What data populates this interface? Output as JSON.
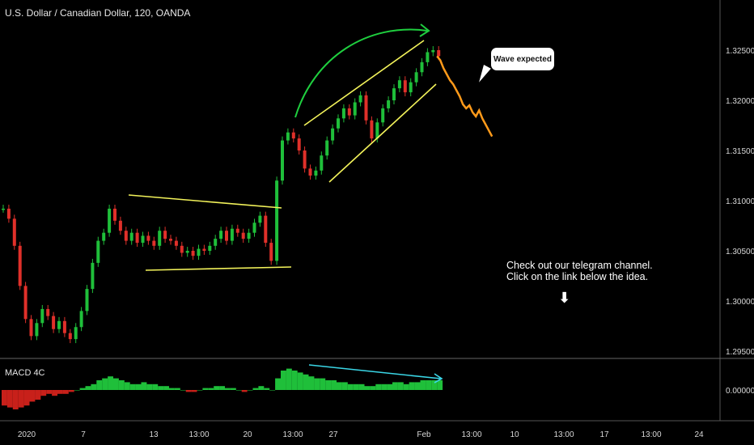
{
  "window": {
    "title": "U.S. Dollar / Canadian Dollar, 120, OANDA"
  },
  "indicator": {
    "label": "MACD 4C"
  },
  "annotations": {
    "bubble_text": "Wave expected",
    "note_line1": "Check out our telegram channel.",
    "note_line2": "Click on the link below the idea.",
    "arrow_icon": "down-arrow-icon"
  },
  "colors": {
    "background": "#000000",
    "up_candle": "#1fbf3a",
    "down_candle": "#e0302a",
    "projection": "#ff9a1a",
    "channel_lines": "#f2f25a",
    "curved_arrow": "#1fcf3f",
    "macd_divergence": "#3ad6e6",
    "macd_positive": "#1fbf3a",
    "macd_negative": "#c8201a"
  },
  "chart_data": {
    "type": "line",
    "title": "U.S. Dollar / Canadian Dollar, 120, OANDA",
    "xlabel": "",
    "ylabel": "",
    "x_tick_labels": [
      "2020",
      "7",
      "13",
      "13:00",
      "20",
      "13:00",
      "27",
      "Feb",
      "13:00",
      "10",
      "13:00",
      "17",
      "13:00",
      "24"
    ],
    "y_tick_labels": [
      "1.32500",
      "1.32000",
      "1.31500",
      "1.31000",
      "1.30500",
      "1.30000",
      "1.29500"
    ],
    "ylim": [
      1.2945,
      1.3275
    ],
    "grid": false,
    "series": [
      {
        "role": "price",
        "values": [
          1.3092,
          1.3082,
          1.3055,
          1.3015,
          1.2982,
          1.2965,
          1.2978,
          1.2992,
          1.2985,
          1.2972,
          1.298,
          1.2968,
          1.2962,
          1.2974,
          1.299,
          1.3012,
          1.3038,
          1.306,
          1.3068,
          1.3092,
          1.308,
          1.307,
          1.306,
          1.3068,
          1.3058,
          1.3065,
          1.306,
          1.3055,
          1.307,
          1.3062,
          1.306,
          1.3055,
          1.3048,
          1.305,
          1.3045,
          1.3052,
          1.305,
          1.3055,
          1.3062,
          1.307,
          1.306,
          1.3072,
          1.3068,
          1.3062,
          1.3068,
          1.3078,
          1.3085,
          1.3058,
          1.304,
          1.312,
          1.316,
          1.3168,
          1.3162,
          1.315,
          1.3132,
          1.3125,
          1.313,
          1.3145,
          1.316,
          1.3172,
          1.3182,
          1.3192,
          1.3185,
          1.3198,
          1.3205,
          1.318,
          1.3162,
          1.3178,
          1.3192,
          1.32,
          1.3212,
          1.322,
          1.3208,
          1.3218,
          1.3228,
          1.3238,
          1.3248,
          1.325,
          1.3244
        ]
      },
      {
        "role": "projection",
        "values": [
          1.3244,
          1.324,
          1.3232,
          1.3226,
          1.322,
          1.3216,
          1.321,
          1.3204,
          1.3196,
          1.3192,
          1.3195,
          1.3188,
          1.3184,
          1.319,
          1.3182,
          1.3176,
          1.317,
          1.3164
        ]
      }
    ],
    "macd": {
      "values": [
        -8,
        -9,
        -10,
        -9,
        -8,
        -6,
        -5,
        -3,
        -2,
        -3,
        -2,
        -2,
        -1,
        0,
        1,
        2,
        3,
        5,
        6,
        7,
        6,
        5,
        4,
        3,
        3,
        4,
        3,
        3,
        2,
        2,
        1,
        1,
        0,
        -1,
        -1,
        0,
        1,
        1,
        2,
        2,
        1,
        1,
        0,
        -1,
        0,
        1,
        2,
        1,
        0,
        6,
        10,
        11,
        10,
        9,
        8,
        7,
        6,
        6,
        5,
        5,
        4,
        4,
        3,
        3,
        3,
        2,
        2,
        3,
        3,
        3,
        4,
        4,
        3,
        4,
        4,
        5,
        5,
        5,
        5
      ],
      "zero_label": "0.00000"
    }
  }
}
